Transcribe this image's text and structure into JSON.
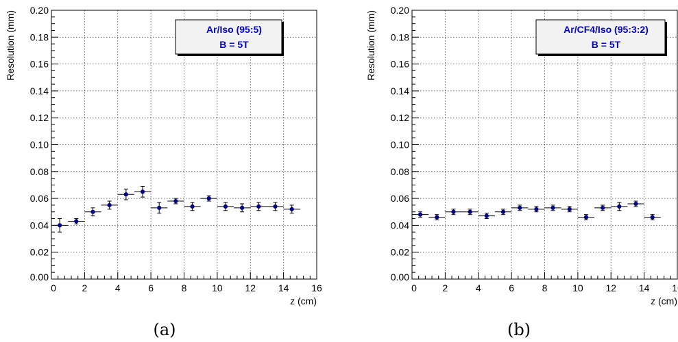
{
  "chart_data": [
    {
      "type": "scatter",
      "xlabel": "z (cm)",
      "ylabel": "Resolution (mm)",
      "xlim": [
        0,
        16
      ],
      "ylim": [
        0,
        0.2
      ],
      "x_ticks": [
        "0",
        "2",
        "4",
        "6",
        "8",
        "10",
        "12",
        "14",
        "16"
      ],
      "y_ticks": [
        "0.00",
        "0.02",
        "0.04",
        "0.06",
        "0.08",
        "0.10",
        "0.12",
        "0.14",
        "0.16",
        "0.18",
        "0.20"
      ],
      "grid": true,
      "legend": {
        "lines": [
          "Ar/Iso (95:5)",
          "B = 5T"
        ],
        "placement": "top-right"
      },
      "caption": "(a)",
      "series": [
        {
          "color": "#000080",
          "x": [
            0.5,
            1.5,
            2.5,
            3.5,
            4.5,
            5.5,
            6.5,
            7.5,
            8.5,
            9.5,
            10.5,
            11.5,
            12.5,
            13.5,
            14.5
          ],
          "y": [
            0.04,
            0.043,
            0.05,
            0.055,
            0.063,
            0.065,
            0.053,
            0.058,
            0.054,
            0.06,
            0.054,
            0.053,
            0.054,
            0.054,
            0.052
          ],
          "x_err": 0.5,
          "y_err": [
            0.005,
            0.002,
            0.003,
            0.003,
            0.004,
            0.004,
            0.004,
            0.002,
            0.003,
            0.002,
            0.003,
            0.003,
            0.003,
            0.003,
            0.003
          ]
        }
      ]
    },
    {
      "type": "scatter",
      "xlabel": "z (cm)",
      "ylabel": "Resolution (mm)",
      "xlim": [
        0,
        16
      ],
      "ylim": [
        0,
        0.2
      ],
      "x_ticks": [
        "0",
        "2",
        "4",
        "6",
        "8",
        "10",
        "12",
        "14",
        "16"
      ],
      "y_ticks": [
        "0.00",
        "0.02",
        "0.04",
        "0.06",
        "0.08",
        "0.10",
        "0.12",
        "0.14",
        "0.16",
        "0.18",
        "0.20"
      ],
      "grid": true,
      "legend": {
        "lines": [
          "Ar/CF4/Iso (95:3:2)",
          "B = 5T"
        ],
        "placement": "top-right"
      },
      "caption": "(b)",
      "series": [
        {
          "color": "#000080",
          "x": [
            0.5,
            1.5,
            2.5,
            3.5,
            4.5,
            5.5,
            6.5,
            7.5,
            8.5,
            9.5,
            10.5,
            11.5,
            12.5,
            13.5,
            14.5
          ],
          "y": [
            0.048,
            0.046,
            0.05,
            0.05,
            0.047,
            0.05,
            0.053,
            0.052,
            0.053,
            0.052,
            0.046,
            0.053,
            0.054,
            0.056,
            0.046
          ],
          "x_err": 0.5,
          "y_err": [
            0.002,
            0.002,
            0.002,
            0.002,
            0.002,
            0.002,
            0.002,
            0.002,
            0.002,
            0.002,
            0.002,
            0.002,
            0.003,
            0.002,
            0.002
          ]
        }
      ]
    }
  ]
}
